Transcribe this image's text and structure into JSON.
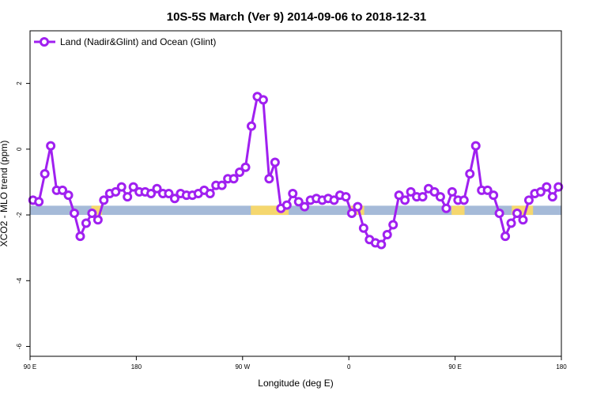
{
  "chart_data": {
    "type": "line",
    "title": "10S-5S March (Ver 9)   2014-09-06 to 2018-12-31",
    "xlabel": "Longitude (deg E)",
    "ylabel": "XCO2 - MLO trend (ppm)",
    "xlim": [
      90,
      540
    ],
    "ylim": [
      -6.3,
      3.6
    ],
    "x_tick_values": [
      90,
      180,
      270,
      360,
      450,
      540
    ],
    "x_tick_labels": [
      "90 E",
      "180",
      "90 W",
      "0",
      "90 E",
      "180"
    ],
    "y_tick_values": [
      -6,
      -4,
      -2,
      0,
      2
    ],
    "y_tick_labels": [
      "-6",
      "-4",
      "-2",
      "0",
      "2"
    ],
    "grid": false,
    "legend_position": "top-left",
    "line_color": "#a020f0",
    "surface_band": {
      "y_range": [
        -2.0,
        -1.72
      ],
      "ocean_color": "#a5bad8",
      "land_color": "#f5d76e",
      "land_segments": [
        [
          142,
          151
        ],
        [
          277,
          309
        ],
        [
          360,
          373
        ],
        [
          447,
          458
        ],
        [
          498,
          516
        ]
      ]
    },
    "series": [
      {
        "name": "Land (Nadir&Glint) and Ocean (Glint)",
        "x": [
          92.5,
          97.5,
          102.5,
          107.5,
          112.5,
          117.5,
          122.5,
          127.5,
          132.5,
          137.5,
          142.5,
          147.5,
          152.5,
          157.5,
          162.5,
          167.5,
          172.5,
          177.5,
          182.5,
          187.5,
          192.5,
          197.5,
          202.5,
          207.5,
          212.5,
          217.5,
          222.5,
          227.5,
          232.5,
          237.5,
          242.5,
          247.5,
          252.5,
          257.5,
          262.5,
          267.5,
          272.5,
          277.5,
          282.5,
          287.5,
          292.5,
          297.5,
          302.5,
          307.5,
          312.5,
          317.5,
          322.5,
          327.5,
          332.5,
          337.5,
          342.5,
          347.5,
          352.5,
          357.5,
          362.5,
          367.5,
          372.5,
          377.5,
          382.5,
          387.5,
          392.5,
          397.5,
          402.5,
          407.5,
          412.5,
          417.5,
          422.5,
          427.5,
          432.5,
          437.5,
          442.5,
          447.5,
          452.5,
          457.5,
          462.5,
          467.5,
          472.5,
          477.5,
          482.5,
          487.5,
          492.5,
          497.5,
          502.5,
          507.5,
          512.5,
          517.5,
          522.5,
          527.5,
          532.5,
          537.5
        ],
        "values": [
          -1.55,
          -1.6,
          -0.75,
          0.1,
          -1.25,
          -1.25,
          -1.4,
          -1.95,
          -2.65,
          -2.25,
          -1.95,
          -2.15,
          -1.55,
          -1.35,
          -1.3,
          -1.15,
          -1.45,
          -1.15,
          -1.3,
          -1.3,
          -1.35,
          -1.2,
          -1.35,
          -1.35,
          -1.5,
          -1.35,
          -1.4,
          -1.4,
          -1.35,
          -1.25,
          -1.35,
          -1.1,
          -1.1,
          -0.9,
          -0.9,
          -0.7,
          -0.55,
          0.7,
          1.6,
          1.5,
          -0.9,
          -0.4,
          -1.8,
          -1.7,
          -1.35,
          -1.6,
          -1.75,
          -1.55,
          -1.5,
          -1.55,
          -1.5,
          -1.55,
          -1.4,
          -1.45,
          -1.95,
          -1.75,
          -2.4,
          -2.75,
          -2.85,
          -2.9,
          -2.6,
          -2.3,
          -1.4,
          -1.55,
          -1.3,
          -1.45,
          -1.45,
          -1.2,
          -1.3,
          -1.45,
          -1.8,
          -1.3,
          -1.55,
          -1.55,
          -0.75,
          0.1,
          -1.25,
          -1.25,
          -1.4,
          -1.95,
          -2.65,
          -2.25,
          -1.95,
          -2.15,
          -1.55,
          -1.35,
          -1.3,
          -1.15,
          -1.45,
          -1.15
        ]
      }
    ]
  }
}
